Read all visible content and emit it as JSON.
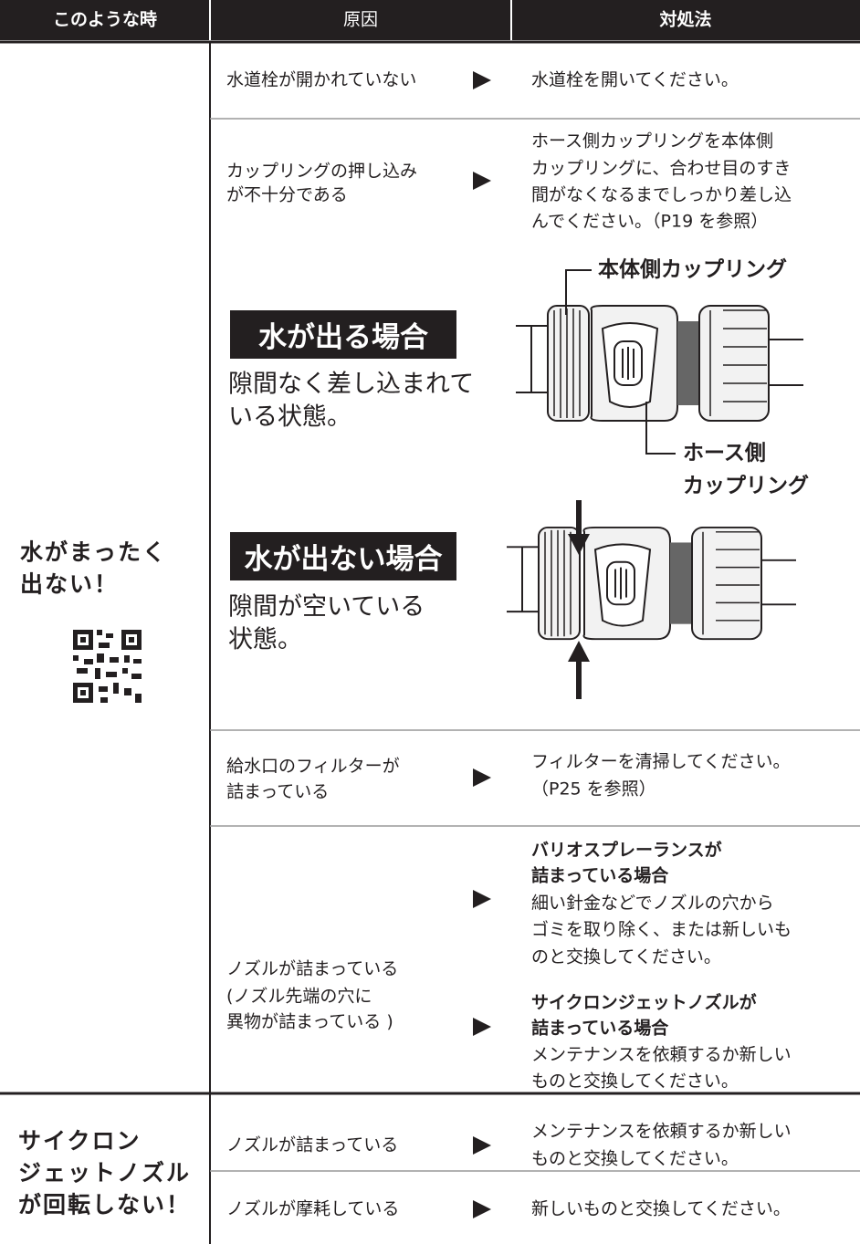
{
  "header": {
    "columns": [
      "このような時",
      "原因",
      "対処法"
    ]
  },
  "groups": [
    {
      "symptom": [
        "水がまったく",
        "出ない！"
      ],
      "rows": [
        {
          "cause": [
            "水道栓が開かれていない"
          ],
          "remedy": [
            "水道栓を開いてください。"
          ]
        },
        {
          "cause": [
            "カップリングの押し込み",
            "が不十分である"
          ],
          "remedy": [
            "ホース側カップリングを本体側",
            "カップリングに、合わせ目のすき",
            "間がなくなるまでしっかり差し込",
            "んでください。（P19 を参照）"
          ],
          "illustration": {
            "ok": {
              "title": "水が出る場合",
              "text": [
                "隙間なく差し込まれて",
                "いる状態。"
              ]
            },
            "ng": {
              "title": "水が出ない場合",
              "text": [
                "隙間が空いている",
                "状態。"
              ]
            },
            "body_label": "本体側カップリング",
            "hose_label": [
              "ホース側",
              "カップリング"
            ]
          }
        },
        {
          "cause": [
            "給水口のフィルターが",
            "詰まっている"
          ],
          "remedy": [
            "フィルターを清掃してください。",
            "（P25 を参照）"
          ]
        },
        {
          "cause": [
            "ノズルが詰まっている",
            "(ノズル先端の穴に",
            " 異物が詰まっている )"
          ],
          "remedy_sections": [
            {
              "heading": [
                "バリオスプレーランスが",
                "詰まっている場合"
              ],
              "body": [
                "細い針金などでノズルの穴から",
                "ゴミを取り除く、または新しいも",
                "のと交換してください。"
              ]
            },
            {
              "heading": [
                "サイクロンジェットノズルが",
                "詰まっている場合"
              ],
              "body": [
                "メンテナンスを依頼するか新しい",
                "ものと交換してください。"
              ]
            }
          ]
        }
      ]
    },
    {
      "symptom": [
        "サイクロン",
        "ジェットノズル",
        "が回転しない！"
      ],
      "rows": [
        {
          "cause": [
            "ノズルが詰まっている"
          ],
          "remedy": [
            "メンテナンスを依頼するか新しい",
            "ものと交換してください。"
          ]
        },
        {
          "cause": [
            "ノズルが摩耗している"
          ],
          "remedy": [
            "新しいものと交換してください。"
          ]
        }
      ]
    }
  ]
}
